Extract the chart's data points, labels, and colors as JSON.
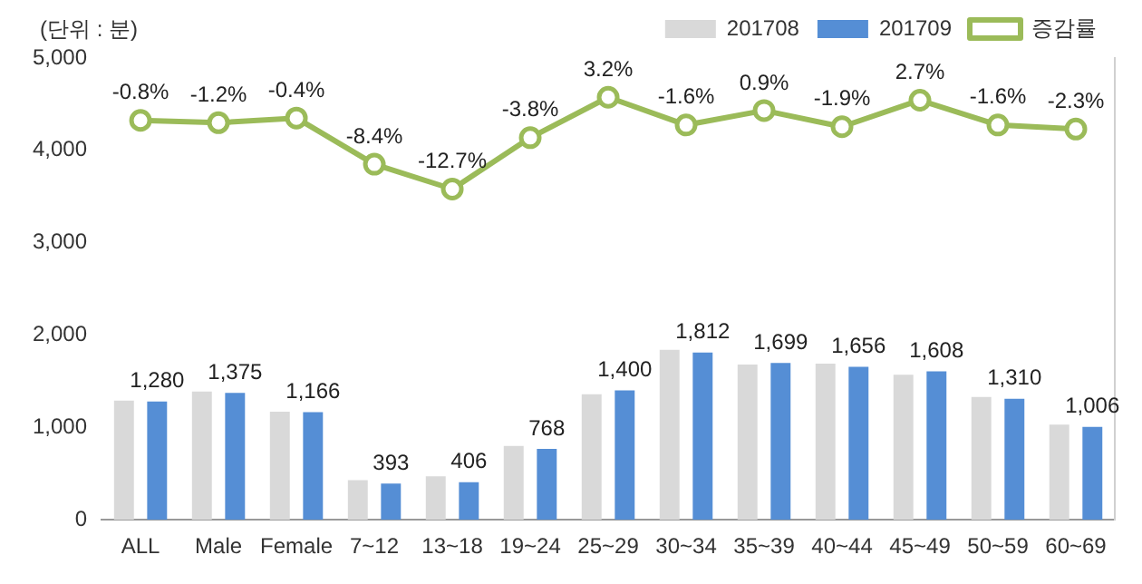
{
  "chart_data": {
    "type": "bar",
    "ylabel": "(단위 : 분)",
    "categories": [
      "ALL",
      "Male",
      "Female",
      "7~12",
      "13~18",
      "19~24",
      "25~29",
      "30~34",
      "35~39",
      "40~44",
      "45~49",
      "50~59",
      "60~69"
    ],
    "series": [
      {
        "name": "201708",
        "color": "#d9d9d9",
        "values": [
          1290,
          1390,
          1170,
          430,
          470,
          800,
          1360,
          1840,
          1680,
          1690,
          1570,
          1330,
          1030
        ]
      },
      {
        "name": "201709",
        "color": "#558ed5",
        "values": [
          1280,
          1375,
          1166,
          393,
          406,
          768,
          1400,
          1812,
          1699,
          1656,
          1608,
          1310,
          1006
        ],
        "value_labels": [
          "1,280",
          "1,375",
          "1,166",
          "393",
          "406",
          "768",
          "1,400",
          "1,812",
          "1,699",
          "1,656",
          "1,608",
          "1,310",
          "1,006"
        ]
      },
      {
        "name": "증감률",
        "type": "line",
        "axis": "y2",
        "color": "#9bbb59",
        "values": [
          -0.8,
          -1.2,
          -0.4,
          -8.4,
          -12.7,
          -3.8,
          3.2,
          -1.6,
          0.9,
          -1.9,
          2.7,
          -1.6,
          -2.3
        ],
        "value_labels": [
          "-0.8%",
          "-1.2%",
          "-0.4%",
          "-8.4%",
          "-12.7%",
          "-3.8%",
          "3.2%",
          "-1.6%",
          "0.9%",
          "-1.9%",
          "2.7%",
          "-1.6%",
          "-2.3%"
        ]
      }
    ],
    "ylim": [
      0,
      5000
    ],
    "yticks": [
      {
        "value": 0,
        "label": "0"
      },
      {
        "value": 1000,
        "label": "1,000"
      },
      {
        "value": 2000,
        "label": "2,000"
      },
      {
        "value": 3000,
        "label": "3,000"
      },
      {
        "value": 4000,
        "label": "4,000"
      },
      {
        "value": 5000,
        "label": "5,000"
      }
    ],
    "y2lim": [
      -70,
      10
    ],
    "tick_labels": [
      "x",
      "y"
    ],
    "marker": "circle",
    "grid": false,
    "legend": "top right"
  }
}
